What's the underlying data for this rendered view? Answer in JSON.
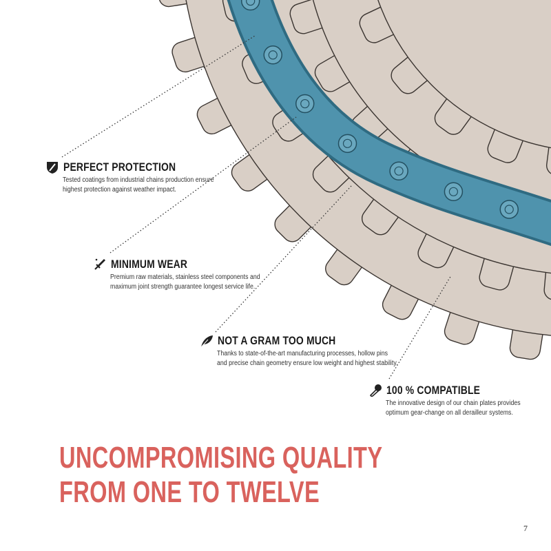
{
  "colors": {
    "cog": "#d9cfc6",
    "cog_edge": "#3a3430",
    "chain": "#4f93ad",
    "title": "#d9625d"
  },
  "features": [
    {
      "icon": "shield-icon",
      "title": "PERFECT PROTECTION",
      "text": "Tested coatings from industrial chains production ensure highest protection against weather impact."
    },
    {
      "icon": "sword-icon",
      "title": "MINIMUM WEAR",
      "text": "Premium raw materials, stainless steel components and maximum joint strength guarantee longest service life."
    },
    {
      "icon": "feather-icon",
      "title": "NOT A GRAM TOO MUCH",
      "text": "Thanks to state-of-the-art manufacturing processes, hollow pins and precise chain geometry ensure low weight and highest stability."
    },
    {
      "icon": "safety-pin-icon",
      "title": "100 % COMPATIBLE",
      "text": "The innovative design of our chain plates provides optimum gear-change on all derailleur systems."
    }
  ],
  "headline": {
    "line1": "UNCOMPROMISING QUALITY",
    "line2": "FROM ONE TO TWELVE"
  },
  "page_number": "7"
}
